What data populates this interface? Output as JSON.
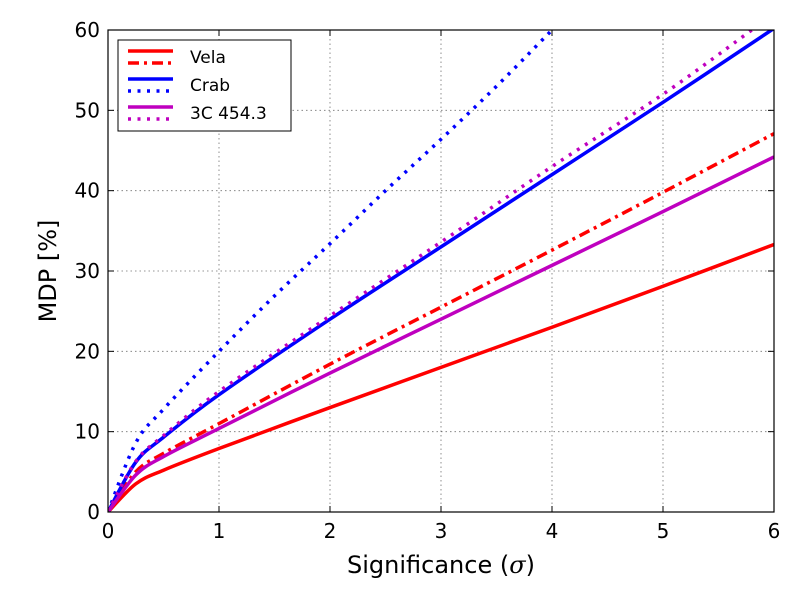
{
  "chart_data": {
    "type": "line",
    "title": "",
    "xlabel": "Significance (σ)",
    "xlabel_text": "Significance (",
    "xlabel_symbol": "σ",
    "xlabel_close": ")",
    "ylabel": "MDP [%]",
    "xlim": [
      0,
      6
    ],
    "ylim": [
      0,
      60
    ],
    "xticks": [
      "0",
      "1",
      "2",
      "3",
      "4",
      "5",
      "6"
    ],
    "yticks": [
      "0",
      "10",
      "20",
      "30",
      "40",
      "50",
      "60"
    ],
    "grid": true,
    "legend_position": "top-left",
    "legend": [
      {
        "name": "Vela",
        "color": "#ff0000"
      },
      {
        "name": "Crab",
        "color": "#0000ff"
      },
      {
        "name": "3C 454.3",
        "color": "#bf00bf"
      }
    ],
    "series": [
      {
        "name": "Vela (solid)",
        "color": "#ff0000",
        "style": "solid",
        "x": [
          0,
          0.25,
          0.5,
          1,
          2,
          3,
          4,
          5,
          6
        ],
        "values": [
          0,
          3.5,
          5.2,
          7.9,
          13.0,
          18.0,
          23.0,
          28.1,
          33.3
        ]
      },
      {
        "name": "Vela (dash-dot)",
        "color": "#ff0000",
        "style": "dashdot",
        "x": [
          0,
          0.25,
          0.5,
          1,
          2,
          3,
          4,
          5,
          6
        ],
        "values": [
          0,
          5.0,
          7.3,
          11.0,
          18.4,
          25.5,
          32.6,
          39.8,
          47.1
        ]
      },
      {
        "name": "Crab (solid)",
        "color": "#0000ff",
        "style": "solid",
        "x": [
          0,
          0.25,
          0.5,
          1,
          2,
          3,
          4,
          5,
          6
        ],
        "values": [
          0,
          6.2,
          9.3,
          14.6,
          24.0,
          33.0,
          42.0,
          51.0,
          60.2
        ]
      },
      {
        "name": "Crab (dotted)",
        "color": "#0000ff",
        "style": "dotted",
        "x": [
          0,
          0.25,
          0.5,
          1,
          1.5,
          2,
          2.5,
          3,
          3.5,
          4.0
        ],
        "values": [
          0,
          8.6,
          12.8,
          20.0,
          26.9,
          33.4,
          40.0,
          46.4,
          53.0,
          60.0
        ]
      },
      {
        "name": "3C 454.3 (solid)",
        "color": "#bf00bf",
        "style": "solid",
        "x": [
          0,
          0.25,
          0.5,
          1,
          2,
          3,
          4,
          5,
          6
        ],
        "values": [
          0,
          4.6,
          6.9,
          10.4,
          17.3,
          24.0,
          30.7,
          37.4,
          44.2
        ]
      },
      {
        "name": "3C 454.3 (dotted)",
        "color": "#bf00bf",
        "style": "dotted",
        "x": [
          0,
          0.25,
          0.5,
          1,
          2,
          3,
          4,
          5,
          5.8
        ],
        "values": [
          0,
          6.3,
          9.5,
          15.0,
          24.4,
          33.6,
          43.0,
          52.0,
          60.0
        ]
      }
    ]
  }
}
